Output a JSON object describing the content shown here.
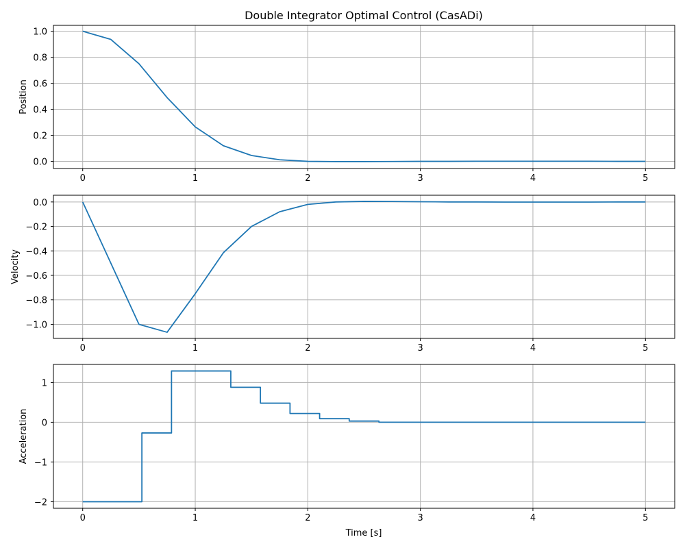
{
  "chart_data": [
    {
      "type": "line",
      "title": "Double Integrator Optimal Control (CasADi)",
      "xlabel": "",
      "ylabel": "Position",
      "xlim": [
        -0.26,
        5.26
      ],
      "ylim": [
        -0.055,
        1.045
      ],
      "xticks": [
        0,
        1,
        2,
        3,
        4,
        5
      ],
      "xtick_labels": [
        "0",
        "1",
        "2",
        "3",
        "4",
        "5"
      ],
      "yticks": [
        0.0,
        0.2,
        0.4,
        0.6,
        0.8,
        1.0
      ],
      "ytick_labels": [
        "0.0",
        "0.2",
        "0.4",
        "0.6",
        "0.8",
        "1.0"
      ],
      "grid": true,
      "step": false,
      "color": "#1f77b4",
      "series": [
        {
          "x": [
            0,
            0.25,
            0.5,
            0.75,
            1.0,
            1.25,
            1.5,
            1.75,
            2.0,
            2.25,
            2.5,
            2.75,
            3.0,
            3.25,
            3.5,
            3.75,
            4.0,
            4.25,
            4.5,
            4.75,
            5.0
          ],
          "values": [
            1.0,
            0.937,
            0.75,
            0.49,
            0.265,
            0.12,
            0.045,
            0.012,
            0.0,
            -0.002,
            -0.002,
            -0.001,
            0.0,
            0.0,
            0.001,
            0.001,
            0.001,
            0.001,
            0.001,
            0.0,
            0.0
          ]
        }
      ]
    },
    {
      "type": "line",
      "title": "",
      "xlabel": "",
      "ylabel": "Velocity",
      "xlim": [
        -0.26,
        5.26
      ],
      "ylim": [
        -1.115,
        0.055
      ],
      "xticks": [
        0,
        1,
        2,
        3,
        4,
        5
      ],
      "xtick_labels": [
        "0",
        "1",
        "2",
        "3",
        "4",
        "5"
      ],
      "yticks": [
        -1.0,
        -0.8,
        -0.6,
        -0.4,
        -0.2,
        0.0
      ],
      "ytick_labels": [
        "−1.0",
        "−0.8",
        "−0.6",
        "−0.4",
        "−0.2",
        "0.0"
      ],
      "grid": true,
      "step": false,
      "color": "#1f77b4",
      "series": [
        {
          "x": [
            0,
            0.5,
            0.75,
            1.0,
            1.25,
            1.5,
            1.75,
            2.0,
            2.25,
            2.5,
            2.75,
            3.0,
            3.25,
            3.5,
            3.75,
            4.0,
            4.25,
            4.5,
            4.75,
            5.0
          ],
          "values": [
            0.0,
            -1.0,
            -1.065,
            -0.75,
            -0.415,
            -0.2,
            -0.08,
            -0.02,
            0.0,
            0.005,
            0.004,
            0.002,
            0.0,
            0.0,
            -0.001,
            -0.001,
            -0.001,
            -0.001,
            0.0,
            0.0
          ]
        }
      ]
    },
    {
      "type": "line",
      "title": "",
      "xlabel": "Time [s]",
      "ylabel": "Acceleration",
      "xlim": [
        -0.26,
        5.26
      ],
      "ylim": [
        -2.165,
        1.455
      ],
      "xticks": [
        0,
        1,
        2,
        3,
        4,
        5
      ],
      "xtick_labels": [
        "0",
        "1",
        "2",
        "3",
        "4",
        "5"
      ],
      "yticks": [
        -2,
        -1,
        0,
        1
      ],
      "ytick_labels": [
        "−2",
        "−1",
        "0",
        "1"
      ],
      "grid": true,
      "step": true,
      "color": "#1f77b4",
      "series": [
        {
          "x": [
            0,
            0.526,
            0.789,
            1.053,
            1.316,
            1.579,
            1.842,
            2.105,
            2.368,
            2.632,
            5.0
          ],
          "values": [
            -2.0,
            -0.27,
            1.29,
            1.29,
            0.88,
            0.48,
            0.22,
            0.09,
            0.03,
            0.0,
            0.0
          ]
        }
      ]
    }
  ]
}
